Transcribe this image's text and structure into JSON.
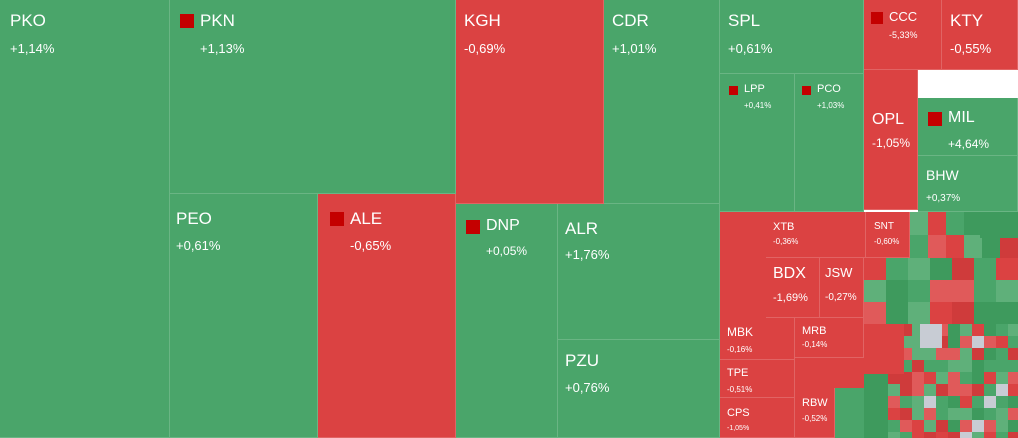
{
  "colors": {
    "up": "#4aa56a",
    "down": "#db4242",
    "flat": "#c8ccd4",
    "marker": "#c40000"
  },
  "chart_data": {
    "type": "treemap",
    "tiles": [
      {
        "symbol": "PKO",
        "change": "+1,14%",
        "direction": "up",
        "flag": false
      },
      {
        "symbol": "PKN",
        "change": "+1,13%",
        "direction": "up",
        "flag": true
      },
      {
        "symbol": "KGH",
        "change": "-0,69%",
        "direction": "down",
        "flag": false
      },
      {
        "symbol": "CDR",
        "change": "+1,01%",
        "direction": "up",
        "flag": false
      },
      {
        "symbol": "SPL",
        "change": "+0,61%",
        "direction": "up",
        "flag": false
      },
      {
        "symbol": "CCC",
        "change": "-5,33%",
        "direction": "down",
        "flag": true
      },
      {
        "symbol": "KTY",
        "change": "-0,55%",
        "direction": "down",
        "flag": false
      },
      {
        "symbol": "LPP",
        "change": "+0,41%",
        "direction": "up",
        "flag": true
      },
      {
        "symbol": "PCO",
        "change": "+1,03%",
        "direction": "up",
        "flag": true
      },
      {
        "symbol": "OPL",
        "change": "-1,05%",
        "direction": "down",
        "flag": false
      },
      {
        "symbol": "MIL",
        "change": "+4,64%",
        "direction": "up",
        "flag": true
      },
      {
        "symbol": "BHW",
        "change": "+0,37%",
        "direction": "up",
        "flag": false
      },
      {
        "symbol": "PEO",
        "change": "+0,61%",
        "direction": "up",
        "flag": false
      },
      {
        "symbol": "ALE",
        "change": "-0,65%",
        "direction": "down",
        "flag": true
      },
      {
        "symbol": "DNP",
        "change": "+0,05%",
        "direction": "up",
        "flag": true
      },
      {
        "symbol": "ALR",
        "change": "+1,76%",
        "direction": "up",
        "flag": false
      },
      {
        "symbol": "PZU",
        "change": "+0,76%",
        "direction": "up",
        "flag": false
      },
      {
        "symbol": "XTB",
        "change": "-0,36%",
        "direction": "down",
        "flag": false
      },
      {
        "symbol": "SNT",
        "change": "-0,60%",
        "direction": "down",
        "flag": false
      },
      {
        "symbol": "BDX",
        "change": "-1,69%",
        "direction": "down",
        "flag": false
      },
      {
        "symbol": "JSW",
        "change": "-0,27%",
        "direction": "down",
        "flag": false
      },
      {
        "symbol": "MBK",
        "change": "-0,16%",
        "direction": "down",
        "flag": false
      },
      {
        "symbol": "MRB",
        "change": "-0,14%",
        "direction": "down",
        "flag": false
      },
      {
        "symbol": "TPE",
        "change": "-0,51%",
        "direction": "down",
        "flag": false
      },
      {
        "symbol": "CPS",
        "change": "-1,05%",
        "direction": "down",
        "flag": false
      },
      {
        "symbol": "RBW",
        "change": "-0,52%",
        "direction": "down",
        "flag": false
      }
    ]
  }
}
